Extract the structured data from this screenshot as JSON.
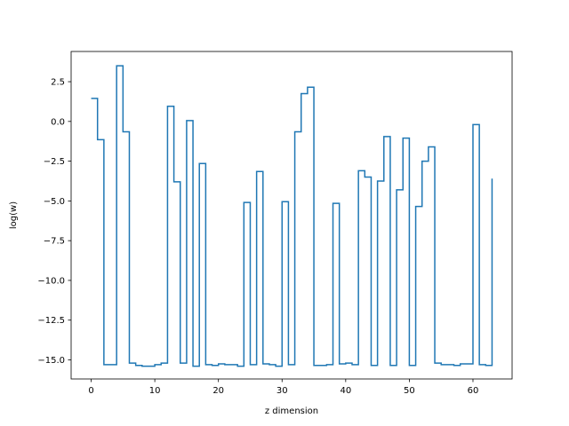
{
  "chart_data": {
    "type": "line",
    "drawstyle": "steps-post",
    "title": "",
    "xlabel": "z dimension",
    "ylabel": "log(w)",
    "xlim": [
      -3.15,
      66.15
    ],
    "ylim": [
      -16.2,
      4.4
    ],
    "xticks": [
      0,
      10,
      20,
      30,
      40,
      50,
      60
    ],
    "xtick_labels": [
      "0",
      "10",
      "20",
      "30",
      "40",
      "50",
      "60"
    ],
    "yticks": [
      2.5,
      0.0,
      -2.5,
      -5.0,
      -7.5,
      -10.0,
      -12.5,
      -15.0
    ],
    "ytick_labels": [
      "2.5",
      "0.0",
      "−2.5",
      "−5.0",
      "−7.5",
      "−10.0",
      "−12.5",
      "−15.0"
    ],
    "grid": false,
    "legend": false,
    "series": [
      {
        "color": "#1f77b4",
        "x": [
          0,
          1,
          2,
          3,
          4,
          5,
          6,
          7,
          8,
          9,
          10,
          11,
          12,
          13,
          14,
          15,
          16,
          17,
          18,
          19,
          20,
          21,
          22,
          23,
          24,
          25,
          26,
          27,
          28,
          29,
          30,
          31,
          32,
          33,
          34,
          35,
          36,
          37,
          38,
          39,
          40,
          41,
          42,
          43,
          44,
          45,
          46,
          47,
          48,
          49,
          50,
          51,
          52,
          53,
          54,
          55,
          56,
          57,
          58,
          59,
          60,
          61,
          62,
          63
        ],
        "y": [
          1.45,
          -1.15,
          -15.3,
          -15.3,
          3.5,
          -0.65,
          -15.2,
          -15.35,
          -15.4,
          -15.4,
          -15.3,
          -15.2,
          0.95,
          -3.8,
          -15.2,
          0.05,
          -15.4,
          -2.65,
          -15.3,
          -15.35,
          -15.25,
          -15.3,
          -15.3,
          -15.4,
          -5.1,
          -15.3,
          -3.15,
          -15.25,
          -15.3,
          -15.4,
          -5.05,
          -15.3,
          -0.65,
          1.75,
          2.15,
          -15.35,
          -15.35,
          -15.3,
          -5.15,
          -15.25,
          -15.2,
          -15.3,
          -3.1,
          -3.5,
          -15.35,
          -3.75,
          -0.95,
          -15.35,
          -4.3,
          -1.05,
          -15.35,
          -5.35,
          -2.5,
          -1.6,
          -15.2,
          -15.3,
          -15.3,
          -15.35,
          -15.25,
          -15.25,
          -0.2,
          -15.3,
          -15.35,
          -3.6
        ]
      }
    ]
  }
}
